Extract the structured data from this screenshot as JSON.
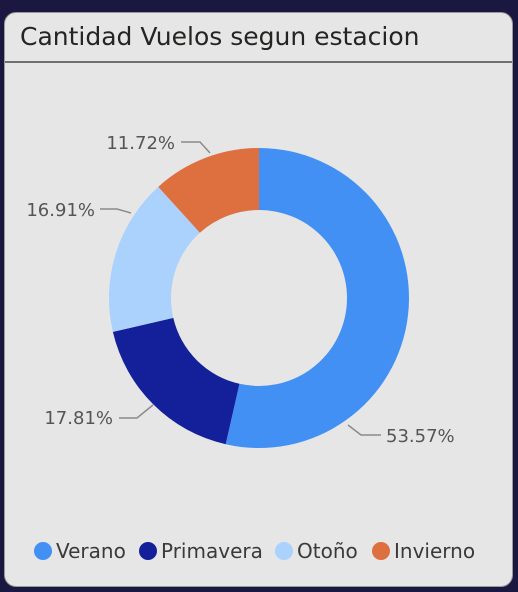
{
  "card": {
    "title": "Cantidad Vuelos segun estacion"
  },
  "chart_data": {
    "type": "pie",
    "donut": true,
    "title": "Cantidad Vuelos segun estacion",
    "legend_position": "bottom",
    "slices": [
      {
        "name": "Verano",
        "value": 53.57,
        "label": "53.57%",
        "color": "#4390f4"
      },
      {
        "name": "Primavera",
        "value": 17.81,
        "label": "17.81%",
        "color": "#13209a"
      },
      {
        "name": "Otoño",
        "value": 16.91,
        "label": "16.91%",
        "color": "#abd1fd"
      },
      {
        "name": "Invierno",
        "value": 11.72,
        "label": "11.72%",
        "color": "#de7040"
      }
    ]
  }
}
